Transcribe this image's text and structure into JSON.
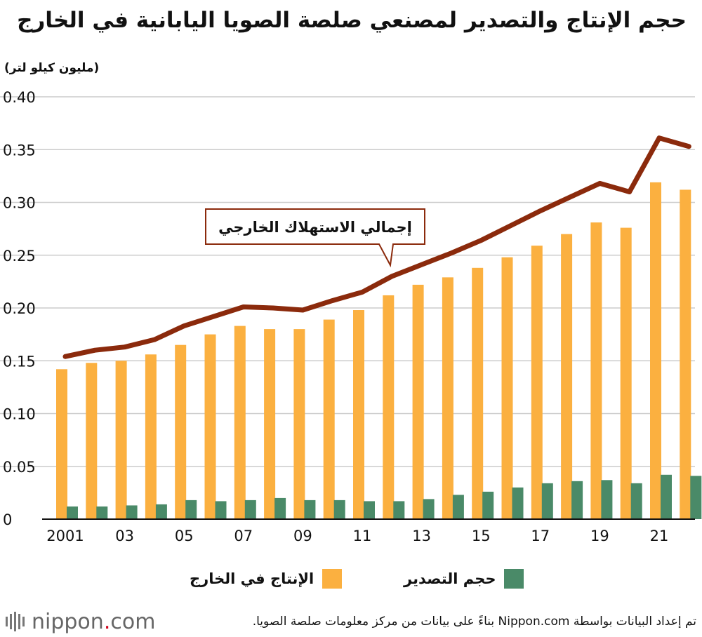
{
  "title": "حجم الإنتاج والتصدير لمصنعي صلصة الصويا اليابانية في الخارج",
  "unit_label": "(مليون كيلو لتر)",
  "colors": {
    "production": "#FBB040",
    "export": "#4A8A68",
    "consumption": "#8B2A0C",
    "grid": "#cccccc",
    "axis": "#111111"
  },
  "legend": {
    "production": "الإنتاج في الخارج",
    "export": "حجم التصدير"
  },
  "chart_data": {
    "type": "bar",
    "title": "حجم الإنتاج والتصدير لمصنعي صلصة الصويا اليابانية في الخارج",
    "ylabel": "(مليون كيلو لتر)",
    "xlabel": "",
    "ylim": [
      0,
      0.4
    ],
    "yticks": [
      "0",
      "0.05",
      "0.10",
      "0.15",
      "0.20",
      "0.25",
      "0.30",
      "0.35",
      "0.40"
    ],
    "grid": true,
    "categories": [
      "2001",
      "2002",
      "2003",
      "2004",
      "2005",
      "2006",
      "2007",
      "2008",
      "2009",
      "2010",
      "2011",
      "2012",
      "2013",
      "2014",
      "2015",
      "2016",
      "2017",
      "2018",
      "2019",
      "2020",
      "2021",
      "2022"
    ],
    "xtick_labels": [
      "2001",
      "",
      "03",
      "",
      "05",
      "",
      "07",
      "",
      "09",
      "",
      "11",
      "",
      "13",
      "",
      "15",
      "",
      "17",
      "",
      "19",
      "",
      "21",
      ""
    ],
    "series": [
      {
        "name": "الإنتاج في الخارج",
        "kind": "bar",
        "values": [
          0.142,
          0.148,
          0.15,
          0.156,
          0.165,
          0.175,
          0.183,
          0.18,
          0.18,
          0.189,
          0.198,
          0.212,
          0.222,
          0.229,
          0.238,
          0.248,
          0.259,
          0.27,
          0.281,
          0.276,
          0.319,
          0.312
        ]
      },
      {
        "name": "حجم التصدير",
        "kind": "bar",
        "values": [
          0.012,
          0.012,
          0.013,
          0.014,
          0.018,
          0.017,
          0.018,
          0.02,
          0.018,
          0.018,
          0.017,
          0.017,
          0.019,
          0.023,
          0.026,
          0.03,
          0.034,
          0.036,
          0.037,
          0.034,
          0.042,
          0.041
        ]
      },
      {
        "name": "إجمالي الاستهلاك الخارجي",
        "kind": "line",
        "values": [
          0.154,
          0.16,
          0.163,
          0.17,
          0.183,
          0.192,
          0.201,
          0.2,
          0.198,
          0.207,
          0.215,
          0.23,
          0.241,
          0.252,
          0.264,
          0.278,
          0.292,
          0.305,
          0.318,
          0.31,
          0.361,
          0.353
        ]
      }
    ],
    "annotation": {
      "text": "إجمالي الاستهلاك الخارجي",
      "target_category": "2012"
    }
  },
  "footer": {
    "logo_text": "nippon",
    "logo_dot": ".",
    "logo_suffix": "com",
    "source": "تم إعداد البيانات بواسطة Nippon.com بناءً على بيانات من مركز معلومات صلصة الصويا."
  }
}
